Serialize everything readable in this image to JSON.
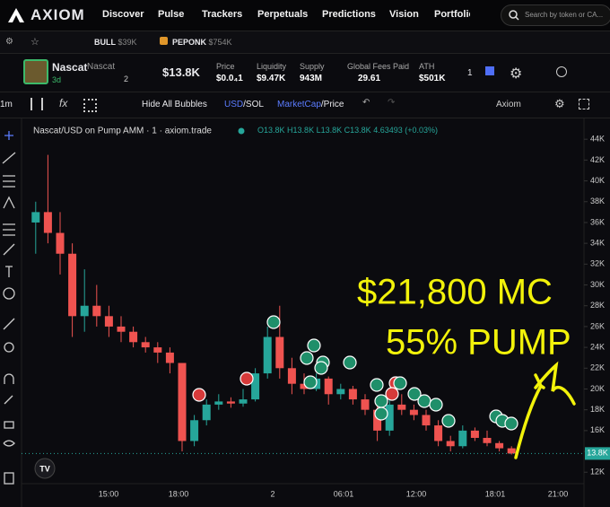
{
  "nav": {
    "logo": "AXIOM",
    "items": [
      "Discover",
      "Pulse",
      "Trackers",
      "Perpetuals",
      "Predictions",
      "Vision",
      "Portfolio"
    ],
    "search": "Search by token or CA..."
  },
  "watchlist": [
    {
      "name": "BULL",
      "value": "$39K"
    },
    {
      "name": "PEPONK",
      "value": "$754K"
    }
  ],
  "token": {
    "name": "Nascat",
    "ticker": "Nascat",
    "age": "3d",
    "watchers": "2",
    "market_cap": "$13.8K",
    "stats": [
      {
        "label": "Price",
        "value": "$0.0₄1"
      },
      {
        "label": "Liquidity",
        "value": "$9.47K"
      },
      {
        "label": "Supply",
        "value": "943M"
      },
      {
        "label": "Global Fees Paid",
        "value": "29.61"
      },
      {
        "label": "ATH",
        "value": "$501K"
      }
    ],
    "alerts": "1"
  },
  "toolbar": {
    "interval": "1m",
    "bubbles": "Hide All Bubbles",
    "currency_active": "USD",
    "currency_other": "/SOL",
    "mode_active": "MarketCap",
    "mode_other": "/Price",
    "source": "Axiom"
  },
  "chart": {
    "type": "candlestick",
    "legend": "Nascat/USD on Pump AMM · 1 · axiom.trade",
    "ohlc": [
      "O13.8K",
      "H13.8K",
      "L13.8K",
      "C13.8K",
      "4.63493 (+0.03%)"
    ],
    "up_color": "#26a69a",
    "down_color": "#ef5350",
    "grid": false,
    "candles": [
      [
        36,
        38,
        33,
        37
      ],
      [
        37,
        42.5,
        34,
        35
      ],
      [
        35,
        37,
        31,
        33
      ],
      [
        33,
        34,
        25,
        27
      ],
      [
        27,
        31.5,
        25.5,
        28
      ],
      [
        28,
        30,
        26,
        27
      ],
      [
        27,
        28,
        25,
        26
      ],
      [
        26,
        27,
        24.5,
        25.5
      ],
      [
        25.5,
        26,
        24,
        24.5
      ],
      [
        24.5,
        25,
        23.5,
        24
      ],
      [
        24,
        24.5,
        22.5,
        23.5
      ],
      [
        23.5,
        24,
        21.5,
        22.5
      ],
      [
        22.5,
        22.5,
        14,
        15
      ],
      [
        15,
        17.5,
        14.5,
        17
      ],
      [
        17,
        19,
        16.5,
        18.5
      ],
      [
        18.5,
        19.5,
        18,
        18.8
      ],
      [
        18.8,
        19.2,
        18.2,
        18.6
      ],
      [
        18.6,
        20,
        18.3,
        19
      ],
      [
        19,
        22,
        18.8,
        21.5
      ],
      [
        21.5,
        26,
        21,
        25
      ],
      [
        25,
        28,
        21,
        22
      ],
      [
        22,
        23,
        19.5,
        20.5
      ],
      [
        20.5,
        21.5,
        19.5,
        20
      ],
      [
        20,
        21.5,
        19.8,
        21
      ],
      [
        21,
        21.2,
        18.5,
        19.5
      ],
      [
        19.5,
        20.5,
        19,
        20
      ],
      [
        20,
        20.3,
        18.5,
        19
      ],
      [
        19,
        19.5,
        17.5,
        18
      ],
      [
        18,
        18.5,
        15,
        16
      ],
      [
        16,
        19,
        15.5,
        18.5
      ],
      [
        18.5,
        19.5,
        17.5,
        18
      ],
      [
        18,
        18.5,
        17,
        17.5
      ],
      [
        17.5,
        18,
        16,
        16.5
      ],
      [
        16.5,
        17,
        14.5,
        15
      ],
      [
        15,
        15.5,
        14,
        14.5
      ],
      [
        14.5,
        16.5,
        14.3,
        16
      ],
      [
        16,
        16.3,
        15,
        15.3
      ],
      [
        15.3,
        16,
        14.5,
        14.8
      ],
      [
        14.8,
        15,
        14,
        14.3
      ],
      [
        14.3,
        14.5,
        13.7,
        13.8
      ]
    ],
    "ylim": [
      10.9,
      46
    ],
    "yticks": [
      {
        "value": 12,
        "label": "12K"
      },
      {
        "value": 14,
        "label": "14K"
      },
      {
        "value": 16,
        "label": "16K"
      },
      {
        "value": 18,
        "label": "18K"
      },
      {
        "value": 20,
        "label": "20K"
      },
      {
        "value": 22,
        "label": "22K"
      },
      {
        "value": 24,
        "label": "24K"
      },
      {
        "value": 26,
        "label": "26K"
      },
      {
        "value": 28,
        "label": "28K"
      },
      {
        "value": 30,
        "label": "30K"
      },
      {
        "value": 32,
        "label": "32K"
      },
      {
        "value": 34,
        "label": "34K"
      },
      {
        "value": 36,
        "label": "36K"
      },
      {
        "value": 38,
        "label": "38K"
      },
      {
        "value": 40,
        "label": "40K"
      },
      {
        "value": 42,
        "label": "42K"
      },
      {
        "value": 44,
        "label": "44K"
      }
    ],
    "xticks": [
      "15:00",
      "18:00",
      "2",
      "06:01",
      "12:00",
      "18:01",
      "21:00"
    ],
    "last_price": {
      "value": 13.8,
      "label": "13.8K"
    },
    "annotations": [
      "$21,800 MC",
      "55% PUMP"
    ]
  }
}
